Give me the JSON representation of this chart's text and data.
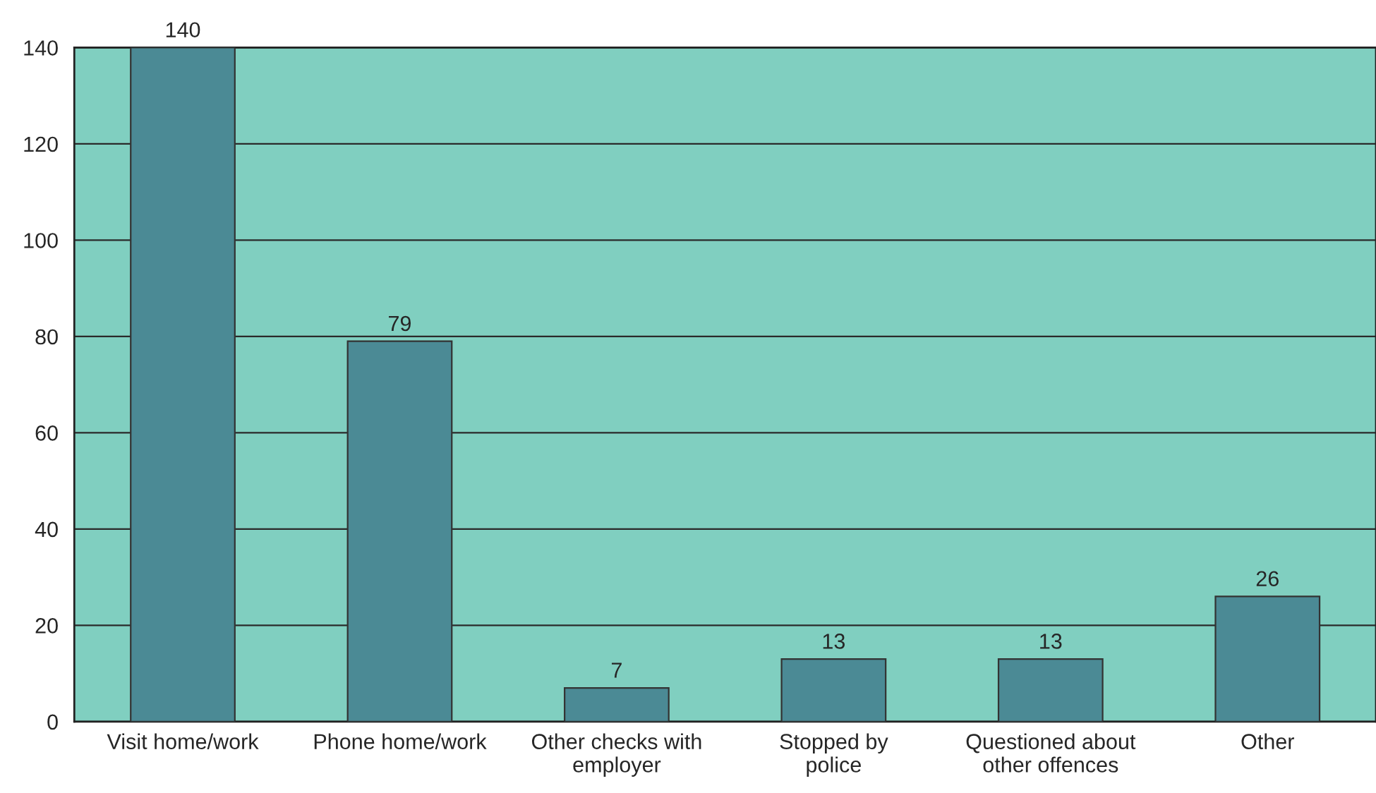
{
  "chart_data": {
    "type": "bar",
    "categories": [
      "Visit home/work",
      "Phone home/work",
      "Other checks with\nemployer",
      "Stopped by\npolice",
      "Questioned about\nother offences",
      "Other"
    ],
    "values": [
      140,
      79,
      7,
      13,
      13,
      26
    ],
    "color": "#4b8a95",
    "ylim": [
      0,
      140
    ],
    "yticks": [
      0,
      20,
      40,
      60,
      80,
      100,
      120,
      140
    ],
    "grid": "y",
    "data_labels": true
  }
}
